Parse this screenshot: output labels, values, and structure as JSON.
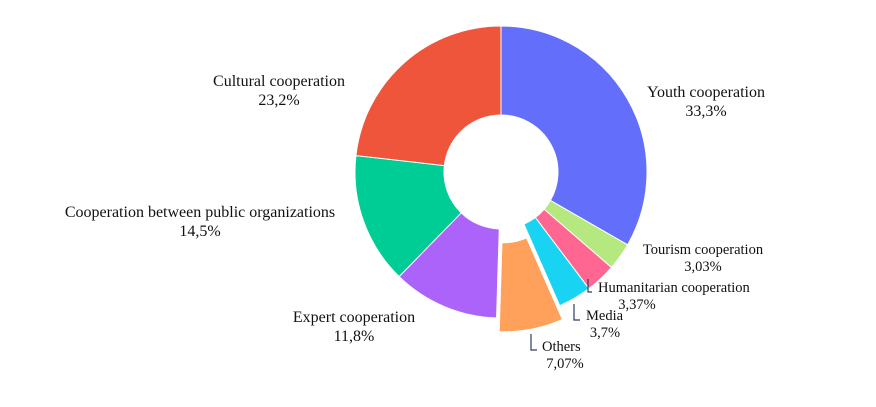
{
  "chart_data": {
    "type": "pie",
    "title": "",
    "hole": true,
    "slices": [
      {
        "label": "Youth cooperation",
        "value_label": "33,3%",
        "value": 33.3,
        "color": "#636efa"
      },
      {
        "label": "Tourism cooperation",
        "value_label": "3,03%",
        "value": 3.03,
        "color": "#b6e880"
      },
      {
        "label": "Humanitarian cooperation",
        "value_label": "3,37%",
        "value": 3.37,
        "color": "#ff6692"
      },
      {
        "label": "Media",
        "value_label": "3,7%",
        "value": 3.7,
        "color": "#19d3f3"
      },
      {
        "label": "Others",
        "value_label": "7,07%",
        "value": 7.07,
        "color": "#ffa15a",
        "pulled": true
      },
      {
        "label": "Expert cooperation",
        "value_label": "11,8%",
        "value": 11.8,
        "color": "#ab63fa"
      },
      {
        "label": "Cooperation between public organizations",
        "value_label": "14,5%",
        "value": 14.5,
        "color": "#00cc96"
      },
      {
        "label": "Cultural cooperation",
        "value_label": "23,2%",
        "value": 23.2,
        "color": "#ef553b"
      }
    ]
  }
}
